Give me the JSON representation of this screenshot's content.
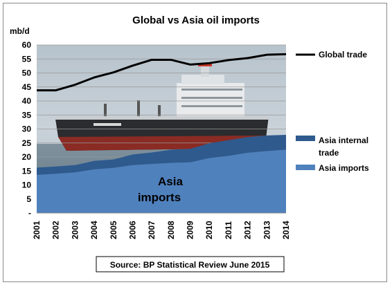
{
  "chart_data": {
    "type": "area",
    "title": "Global vs Asia oil imports",
    "ylabel": "mb/d",
    "ylim": [
      0,
      60
    ],
    "yticks": [
      "-",
      "5",
      "10",
      "15",
      "20",
      "25",
      "30",
      "35",
      "40",
      "45",
      "50",
      "55",
      "60"
    ],
    "grid": true,
    "x": [
      "2001",
      "2002",
      "2003",
      "2004",
      "2005",
      "2006",
      "2007",
      "2008",
      "2009",
      "2010",
      "2011",
      "2012",
      "2013",
      "2014"
    ],
    "series": [
      {
        "name": "Global trade",
        "kind": "line",
        "color": "#000000",
        "values": [
          43.8,
          43.8,
          45.8,
          48.4,
          50.2,
          52.6,
          54.7,
          54.7,
          53.0,
          53.5,
          54.6,
          55.3,
          56.5,
          56.7
        ]
      },
      {
        "name": "Asia internal trade",
        "kind": "stacked-area",
        "color": "#2e5a8e",
        "values": [
          2.6,
          2.6,
          2.6,
          3.0,
          3.0,
          3.8,
          4.1,
          4.7,
          4.8,
          5.3,
          5.6,
          5.6,
          5.6,
          5.3
        ]
      },
      {
        "name": "Asia imports",
        "kind": "stacked-area",
        "color": "#4f81bd",
        "values": [
          13.6,
          14.0,
          14.5,
          15.6,
          16.1,
          17.1,
          17.5,
          17.9,
          18.1,
          19.6,
          20.4,
          21.5,
          22.1,
          22.6
        ]
      }
    ],
    "annotations": [
      "Asia",
      "imports"
    ],
    "legend_position": "right",
    "source": "Source: BP Statistical Review June 2015"
  }
}
